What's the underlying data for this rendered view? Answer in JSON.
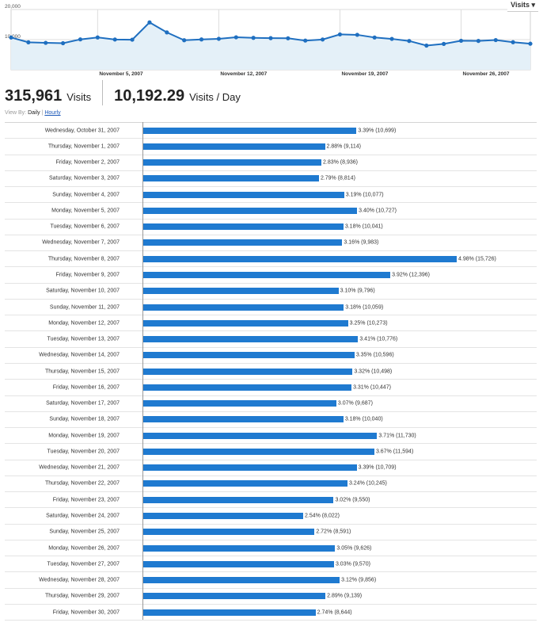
{
  "metric_selector": "Visits ▾",
  "summary": {
    "total_visits": "315,961",
    "total_label": "Visits",
    "per_day": "10,192.29",
    "per_day_label": "Visits / Day"
  },
  "view_by": {
    "label": "View By:",
    "daily": "Daily",
    "separator": "|",
    "hourly": "Hourly"
  },
  "colors": {
    "line": "#1f6fc0",
    "area_fill": "#e4f0f8",
    "bar": "#1f7ad0"
  },
  "chart_data": [
    {
      "type": "area",
      "y_tick_labels": [
        "20,000",
        "10,000"
      ],
      "y_ticks": [
        20000,
        10000
      ],
      "ylim": [
        0,
        20000
      ],
      "x_tick_labels": [
        "November 5, 2007",
        "November 12, 2007",
        "November 19, 2007",
        "November 26, 2007"
      ],
      "x_tick_index": [
        5,
        12,
        19,
        26
      ],
      "grid": true,
      "x": [
        "2007-10-31",
        "2007-11-01",
        "2007-11-02",
        "2007-11-03",
        "2007-11-04",
        "2007-11-05",
        "2007-11-06",
        "2007-11-07",
        "2007-11-08",
        "2007-11-09",
        "2007-11-10",
        "2007-11-11",
        "2007-11-12",
        "2007-11-13",
        "2007-11-14",
        "2007-11-15",
        "2007-11-16",
        "2007-11-17",
        "2007-11-18",
        "2007-11-19",
        "2007-11-20",
        "2007-11-21",
        "2007-11-22",
        "2007-11-23",
        "2007-11-24",
        "2007-11-25",
        "2007-11-26",
        "2007-11-27",
        "2007-11-28",
        "2007-11-29",
        "2007-11-30"
      ],
      "values": [
        10699,
        9114,
        8936,
        8814,
        10077,
        10727,
        10041,
        9983,
        15726,
        12396,
        9796,
        10059,
        10273,
        10776,
        10596,
        10498,
        10447,
        9687,
        10040,
        11730,
        11594,
        10709,
        10245,
        9550,
        8022,
        8591,
        9626,
        9570,
        9856,
        9139,
        8644
      ]
    },
    {
      "type": "bar",
      "orientation": "horizontal",
      "categories": [
        "Wednesday, October 31, 2007",
        "Thursday, November 1, 2007",
        "Friday, November 2, 2007",
        "Saturday, November 3, 2007",
        "Sunday, November 4, 2007",
        "Monday, November 5, 2007",
        "Tuesday, November 6, 2007",
        "Wednesday, November 7, 2007",
        "Thursday, November 8, 2007",
        "Friday, November 9, 2007",
        "Saturday, November 10, 2007",
        "Sunday, November 11, 2007",
        "Monday, November 12, 2007",
        "Tuesday, November 13, 2007",
        "Wednesday, November 14, 2007",
        "Thursday, November 15, 2007",
        "Friday, November 16, 2007",
        "Saturday, November 17, 2007",
        "Sunday, November 18, 2007",
        "Monday, November 19, 2007",
        "Tuesday, November 20, 2007",
        "Wednesday, November 21, 2007",
        "Thursday, November 22, 2007",
        "Friday, November 23, 2007",
        "Saturday, November 24, 2007",
        "Sunday, November 25, 2007",
        "Monday, November 26, 2007",
        "Tuesday, November 27, 2007",
        "Wednesday, November 28, 2007",
        "Thursday, November 29, 2007",
        "Friday, November 30, 2007"
      ],
      "values": [
        10699,
        9114,
        8936,
        8814,
        10077,
        10727,
        10041,
        9983,
        15726,
        12396,
        9796,
        10059,
        10273,
        10776,
        10596,
        10498,
        10447,
        9687,
        10040,
        11730,
        11594,
        10709,
        10245,
        9550,
        8022,
        8591,
        9626,
        9570,
        9856,
        9139,
        8644
      ],
      "percents": [
        3.39,
        2.88,
        2.83,
        2.79,
        3.19,
        3.4,
        3.18,
        3.16,
        4.98,
        3.92,
        3.1,
        3.18,
        3.25,
        3.41,
        3.35,
        3.32,
        3.31,
        3.07,
        3.18,
        3.71,
        3.67,
        3.39,
        3.24,
        3.02,
        2.54,
        2.72,
        3.05,
        3.03,
        3.12,
        2.89,
        2.74
      ],
      "labels": [
        "3.39% (10,699)",
        "2.88% (9,114)",
        "2.83% (8,936)",
        "2.79% (8,814)",
        "3.19% (10,077)",
        "3.40% (10,727)",
        "3.18% (10,041)",
        "3.16% (9,983)",
        "4.98% (15,726)",
        "3.92% (12,396)",
        "3.10% (9,796)",
        "3.18% (10,059)",
        "3.25% (10,273)",
        "3.41% (10,776)",
        "3.35% (10,596)",
        "3.32% (10,498)",
        "3.31% (10,447)",
        "3.07% (9,687)",
        "3.18% (10,040)",
        "3.71% (11,730)",
        "3.67% (11,594)",
        "3.39% (10,709)",
        "3.24% (10,245)",
        "3.02% (9,550)",
        "2.54% (8,022)",
        "2.72% (8,591)",
        "3.05% (9,626)",
        "3.03% (9,570)",
        "3.12% (9,856)",
        "2.89% (9,139)",
        "2.74% (8,644)"
      ]
    }
  ]
}
